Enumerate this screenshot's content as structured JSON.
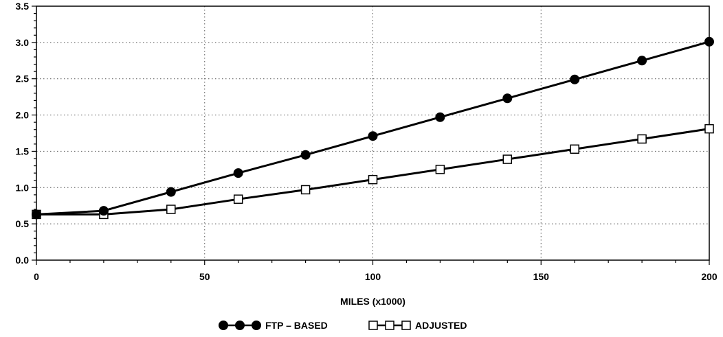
{
  "chart_data": {
    "type": "line",
    "title": "",
    "xlabel": "MILES (x1000)",
    "ylabel": "",
    "xlim": [
      0,
      200
    ],
    "ylim": [
      0,
      3.5
    ],
    "xticks": [
      0,
      50,
      100,
      150,
      200
    ],
    "xtick_labels": [
      "0",
      "50",
      "100",
      "150",
      "200"
    ],
    "yticks": [
      0,
      0.5,
      1.0,
      1.5,
      2.0,
      2.5,
      3.0,
      3.5
    ],
    "ytick_labels": [
      "0.0",
      "0.5",
      "1.0",
      "1.5",
      "2.0",
      "2.5",
      "3.0",
      "3.5"
    ],
    "grid": true,
    "legend_position": "bottom-center",
    "x": [
      0,
      20,
      40,
      60,
      80,
      100,
      120,
      140,
      160,
      180,
      200
    ],
    "series": [
      {
        "name": "FTP – BASED",
        "marker": "filled-circle",
        "color": "#000000",
        "values": [
          0.63,
          0.68,
          0.94,
          1.2,
          1.45,
          1.71,
          1.97,
          2.23,
          2.49,
          2.75,
          3.01
        ]
      },
      {
        "name": "ADJUSTED",
        "marker": "open-square",
        "color": "#000000",
        "values": [
          0.63,
          0.63,
          0.7,
          0.84,
          0.97,
          1.11,
          1.25,
          1.39,
          1.53,
          1.67,
          1.81
        ]
      }
    ]
  }
}
